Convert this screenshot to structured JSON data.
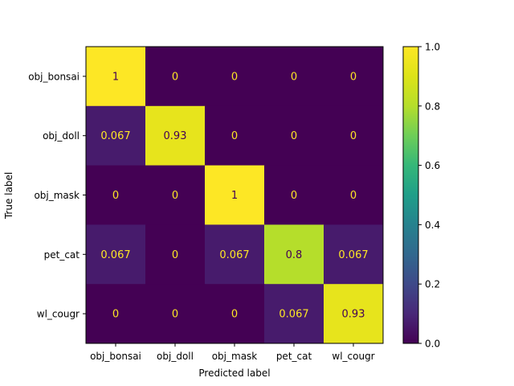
{
  "chart_data": {
    "type": "heatmap",
    "title": "",
    "xlabel": "Predicted label",
    "ylabel": "True label",
    "x_categories": [
      "obj_bonsai",
      "obj_doll",
      "obj_mask",
      "pet_cat",
      "wl_cougr"
    ],
    "y_categories": [
      "obj_bonsai",
      "obj_doll",
      "obj_mask",
      "pet_cat",
      "wl_cougr"
    ],
    "values": [
      [
        1,
        0,
        0,
        0,
        0
      ],
      [
        0.067,
        0.93,
        0,
        0,
        0
      ],
      [
        0,
        0,
        1,
        0,
        0
      ],
      [
        0.067,
        0,
        0.067,
        0.8,
        0.067
      ],
      [
        0,
        0,
        0,
        0.067,
        0.93
      ]
    ],
    "cell_labels": [
      [
        "1",
        "0",
        "0",
        "0",
        "0"
      ],
      [
        "0.067",
        "0.93",
        "0",
        "0",
        "0"
      ],
      [
        "0",
        "0",
        "1",
        "0",
        "0"
      ],
      [
        "0.067",
        "0",
        "0.067",
        "0.8",
        "0.067"
      ],
      [
        "0",
        "0",
        "0",
        "0.067",
        "0.93"
      ]
    ],
    "colorbar": {
      "range": [
        0.0,
        1.0
      ],
      "ticks": [
        "0.0",
        "0.2",
        "0.4",
        "0.6",
        "0.8",
        "1.0"
      ],
      "colormap": "viridis"
    },
    "colors": {
      "low": "#440154",
      "high": "#fde725",
      "text_on_dark": "#fde725",
      "text_on_light": "#440154"
    }
  }
}
